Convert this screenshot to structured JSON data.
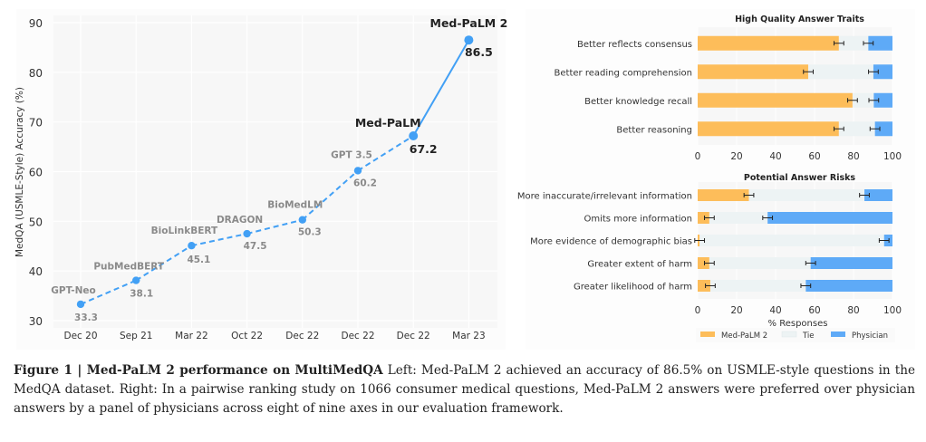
{
  "colors": {
    "line": "#42a0f5",
    "medpalm2": "#fdbd5a",
    "tie": "#edf3f4",
    "physician": "#5eaaf7",
    "panel_bg": "#f7f7f7",
    "grid": "#ffffff",
    "muted_label": "#8a8a8a",
    "strong_label": "#222222"
  },
  "chart_data": [
    {
      "type": "line",
      "title": "",
      "xlabel": "",
      "ylabel": "MedQA (USMLE-Style) Accuracy (%)",
      "ylim": [
        30,
        90
      ],
      "yticks": [
        30,
        40,
        50,
        60,
        70,
        80,
        90
      ],
      "grid": true,
      "categories": [
        "Dec 20",
        "Sep 21",
        "Mar 22",
        "Oct 22",
        "Dec 22",
        "Dec 22",
        "Dec 22",
        "Mar 23"
      ],
      "points": [
        {
          "x_index": 0,
          "model": "GPT-Neo",
          "value": 33.3,
          "value_label": "33.3",
          "emphasis": false
        },
        {
          "x_index": 1,
          "model": "PubMedBERT",
          "value": 38.1,
          "value_label": "38.1",
          "emphasis": false
        },
        {
          "x_index": 2,
          "model": "BioLinkBERT",
          "value": 45.1,
          "value_label": "45.1",
          "emphasis": false
        },
        {
          "x_index": 3,
          "model": "DRAGON",
          "value": 47.5,
          "value_label": "47.5",
          "emphasis": false
        },
        {
          "x_index": 4,
          "model": "BioMedLM",
          "value": 50.3,
          "value_label": "50.3",
          "emphasis": false
        },
        {
          "x_index": 5,
          "model": "GPT 3.5",
          "value": 60.2,
          "value_label": "60.2",
          "emphasis": false
        },
        {
          "x_index": 6,
          "model": "Med-PaLM",
          "value": 67.2,
          "value_label": "67.2",
          "emphasis": true
        },
        {
          "x_index": 7,
          "model": "Med-PaLM 2",
          "value": 86.5,
          "value_label": "86.5",
          "emphasis": true
        }
      ],
      "line_style": {
        "dashed_until_index": 6
      }
    },
    {
      "type": "bar",
      "orientation": "horizontal-stacked",
      "title": "High Quality Answer Traits",
      "xlabel": "",
      "xlim": [
        0,
        100
      ],
      "xticks": [
        0,
        20,
        40,
        60,
        80,
        100
      ],
      "categories": [
        "Better reflects consensus",
        "Better reading comprehension",
        "Better knowledge recall",
        "Better reasoning"
      ],
      "series": [
        {
          "name": "Med-PaLM 2",
          "values": [
            72.5,
            56.8,
            79.5,
            72.5
          ]
        },
        {
          "name": "Tie",
          "values": [
            15.1,
            33.4,
            10.9,
            18.5
          ]
        },
        {
          "name": "Physician",
          "values": [
            12.4,
            9.8,
            9.6,
            9.0
          ]
        }
      ],
      "error_bars": true
    },
    {
      "type": "bar",
      "orientation": "horizontal-stacked",
      "title": "Potential Answer Risks",
      "xlabel": "% Responses",
      "xlim": [
        0,
        100
      ],
      "xticks": [
        0,
        20,
        40,
        60,
        80,
        100
      ],
      "categories": [
        "More inaccurate/irrelevant information",
        "Omits more information",
        "More evidence of demographic bias",
        "Greater extent of harm",
        "Greater likelihood of harm"
      ],
      "series": [
        {
          "name": "Med-PaLM 2",
          "values": [
            26.3,
            6.0,
            1.0,
            6.0,
            6.5
          ]
        },
        {
          "name": "Tie",
          "values": [
            59.3,
            29.9,
            94.7,
            52.0,
            49.0
          ]
        },
        {
          "name": "Physician",
          "values": [
            14.4,
            64.1,
            4.3,
            42.0,
            44.5
          ]
        }
      ],
      "error_bars": true,
      "legend": {
        "placement": "bottom",
        "entries": [
          "Med-PaLM 2",
          "Tie",
          "Physician"
        ]
      }
    }
  ],
  "caption": {
    "label": "Figure 1 | Med-PaLM 2 performance on MultiMedQA",
    "text": " Left: Med-PaLM 2 achieved an accuracy of 86.5% on USMLE-style questions in the MedQA dataset. Right: In a pairwise ranking study on 1066 consumer medical questions, Med-PaLM 2 answers were preferred over physician answers by a panel of physicians across eight of nine axes in our evaluation framework."
  }
}
